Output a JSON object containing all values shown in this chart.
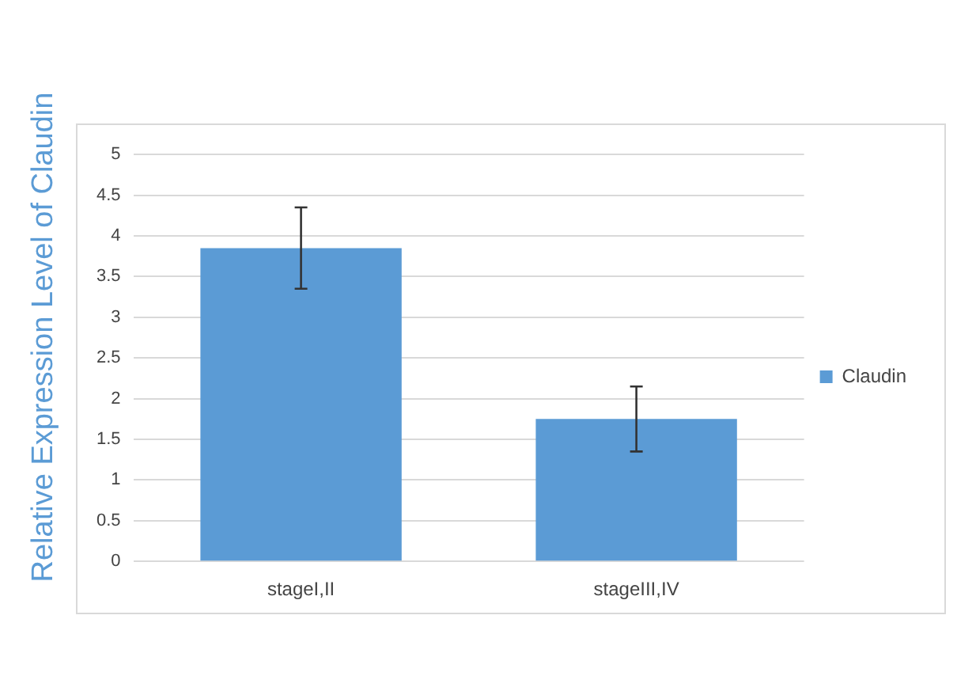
{
  "chart_data": {
    "type": "bar",
    "ylabel": "Relative Expression Level of Claudin",
    "categories": [
      "stageI,II",
      "stageIII,IV"
    ],
    "series": [
      {
        "name": "Claudin",
        "color": "#5b9bd5",
        "values": [
          3.85,
          1.75
        ],
        "errors": [
          0.5,
          0.4
        ]
      }
    ],
    "ylim": [
      0,
      5
    ],
    "yticks": [
      0,
      0.5,
      1,
      1.5,
      2,
      2.5,
      3,
      3.5,
      4,
      4.5,
      5
    ],
    "grid": "y",
    "legend": "right"
  }
}
